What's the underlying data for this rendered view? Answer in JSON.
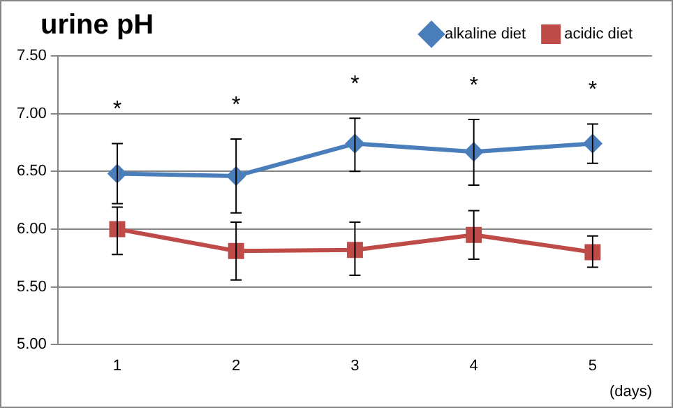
{
  "chart_data": {
    "type": "line",
    "title": "urine pH",
    "xlabel": "(days)",
    "categories": [
      "1",
      "2",
      "3",
      "4",
      "5"
    ],
    "series": [
      {
        "name": "alkaline diet",
        "color": "#4a7ebb",
        "marker": "diamond",
        "values": [
          6.48,
          6.46,
          6.74,
          6.67,
          6.74
        ],
        "errors": [
          [
            6.22,
            6.74
          ],
          [
            6.14,
            6.78
          ],
          [
            6.5,
            6.96
          ],
          [
            6.38,
            6.95
          ],
          [
            6.57,
            6.91
          ]
        ]
      },
      {
        "name": "acidic diet",
        "color": "#be4b48",
        "marker": "square",
        "values": [
          6.0,
          5.81,
          5.82,
          5.95,
          5.8
        ],
        "errors": [
          [
            5.78,
            6.19
          ],
          [
            5.56,
            6.06
          ],
          [
            5.6,
            6.06
          ],
          [
            5.74,
            6.16
          ],
          [
            5.67,
            5.94
          ]
        ]
      }
    ],
    "ylim": [
      5.0,
      7.5
    ],
    "yticks": [
      {
        "value": 5.0,
        "label": "5.00"
      },
      {
        "value": 5.5,
        "label": "5.50"
      },
      {
        "value": 6.0,
        "label": "6.00"
      },
      {
        "value": 6.5,
        "label": "6.50"
      },
      {
        "value": 7.0,
        "label": "7.00"
      },
      {
        "value": 7.5,
        "label": "7.50"
      }
    ],
    "grid": "y",
    "legend": "top right",
    "annotations": [
      "*",
      "*",
      "*",
      "*",
      "*"
    ]
  }
}
